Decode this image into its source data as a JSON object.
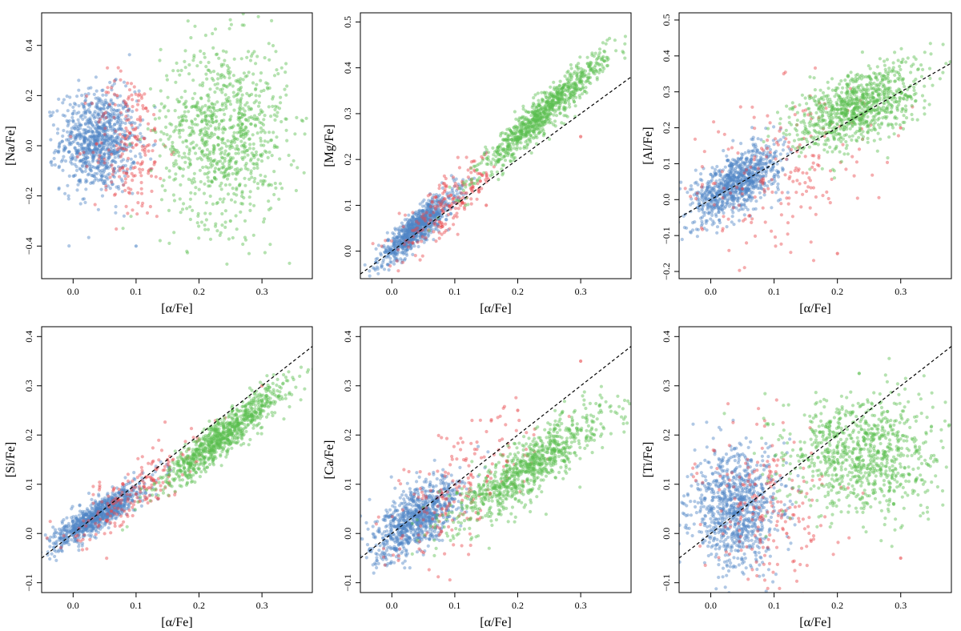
{
  "figure": {
    "layout": "2x3 grid of scatter panels",
    "colors": {
      "blue_population": "#4f86c6",
      "red_population": "#e8474b",
      "green_population": "#5bbf4f",
      "reference_line": "#000000"
    }
  },
  "chart_data": [
    {
      "type": "scatter",
      "title": "",
      "xlabel": "[α/Fe]",
      "ylabel": "[Na/Fe]",
      "xlim": [
        -0.05,
        0.38
      ],
      "ylim": [
        -0.53,
        0.53
      ],
      "xticks": [
        "0.0",
        "0.1",
        "0.2",
        "0.3"
      ],
      "yticks": [
        "−0.4",
        "−0.2",
        "0.0",
        "0.2",
        "0.4"
      ],
      "ytick_values": [
        -0.4,
        -0.2,
        0.0,
        0.2,
        0.4
      ],
      "reference_line": null,
      "series": [
        {
          "color": "blue",
          "n": 900,
          "x_center": 0.04,
          "x_spread": 0.03,
          "y_center": 0.02,
          "y_spread": 0.1,
          "points": [
            [
              0.02,
              0.03
            ],
            [
              0.05,
              0.01
            ],
            [
              0.08,
              -0.02
            ],
            [
              0.0,
              0.1
            ],
            [
              0.1,
              -0.4
            ]
          ]
        },
        {
          "color": "red",
          "n": 200,
          "x_center": 0.09,
          "x_spread": 0.03,
          "y_center": 0.0,
          "y_spread": 0.15,
          "points": [
            [
              0.09,
              0.05
            ],
            [
              0.12,
              -0.1
            ],
            [
              0.07,
              0.2
            ]
          ]
        },
        {
          "color": "green",
          "n": 900,
          "x_center": 0.24,
          "x_spread": 0.05,
          "y_center": 0.05,
          "y_spread": 0.18,
          "points": [
            [
              0.22,
              0.05
            ],
            [
              0.28,
              0.2
            ],
            [
              0.25,
              -0.3
            ],
            [
              0.18,
              0.1
            ]
          ]
        }
      ]
    },
    {
      "type": "scatter",
      "title": "",
      "xlabel": "[α/Fe]",
      "ylabel": "[Mg/Fe]",
      "xlim": [
        -0.05,
        0.38
      ],
      "ylim": [
        -0.06,
        0.52
      ],
      "xticks": [
        "0.0",
        "0.1",
        "0.2",
        "0.3"
      ],
      "yticks": [
        "0.0",
        "0.1",
        "0.2",
        "0.3",
        "0.4",
        "0.5"
      ],
      "ytick_values": [
        0.0,
        0.1,
        0.2,
        0.3,
        0.4,
        0.5
      ],
      "reference_line": {
        "slope": 1,
        "intercept": 0
      },
      "series": [
        {
          "color": "blue",
          "n": 900,
          "x_center": 0.04,
          "x_spread": 0.03,
          "relation": {
            "slope": 1.15,
            "intercept": 0.005
          },
          "y_scatter": 0.018,
          "points": [
            [
              0.02,
              0.03
            ],
            [
              0.05,
              0.06
            ],
            [
              0.1,
              0.12
            ]
          ]
        },
        {
          "color": "red",
          "n": 200,
          "x_center": 0.09,
          "x_spread": 0.04,
          "relation": {
            "slope": 1.1,
            "intercept": 0.0
          },
          "y_scatter": 0.03,
          "points": [
            [
              0.08,
              0.09
            ],
            [
              0.15,
              0.1
            ],
            [
              0.3,
              0.25
            ]
          ]
        },
        {
          "color": "green",
          "n": 900,
          "x_center": 0.24,
          "x_spread": 0.05,
          "relation": {
            "slope": 1.25,
            "intercept": 0.0
          },
          "y_scatter": 0.02,
          "points": [
            [
              0.2,
              0.25
            ],
            [
              0.25,
              0.31
            ],
            [
              0.3,
              0.37
            ]
          ]
        }
      ]
    },
    {
      "type": "scatter",
      "title": "",
      "xlabel": "[α/Fe]",
      "ylabel": "[Al/Fe]",
      "xlim": [
        -0.05,
        0.38
      ],
      "ylim": [
        -0.22,
        0.52
      ],
      "xticks": [
        "0.0",
        "0.1",
        "0.2",
        "0.3"
      ],
      "yticks": [
        "−0.2",
        "−0.1",
        "0.0",
        "0.1",
        "0.2",
        "0.3",
        "0.4",
        "0.5"
      ],
      "ytick_values": [
        -0.2,
        -0.1,
        0.0,
        0.1,
        0.2,
        0.3,
        0.4,
        0.5
      ],
      "reference_line": {
        "slope": 1,
        "intercept": 0
      },
      "series": [
        {
          "color": "blue",
          "n": 900,
          "x_center": 0.04,
          "x_spread": 0.035,
          "relation": {
            "slope": 0.9,
            "intercept": 0.01
          },
          "y_scatter": 0.04,
          "points": [
            [
              0.02,
              0.03
            ],
            [
              0.06,
              0.07
            ],
            [
              0.1,
              0.12
            ]
          ]
        },
        {
          "color": "red",
          "n": 200,
          "x_center": 0.12,
          "x_spread": 0.08,
          "relation": {
            "slope": 0.7,
            "intercept": 0.0
          },
          "y_scatter": 0.12,
          "points": [
            [
              0.05,
              0.03
            ],
            [
              0.2,
              -0.15
            ],
            [
              0.3,
              0.2
            ]
          ]
        },
        {
          "color": "green",
          "n": 900,
          "x_center": 0.23,
          "x_spread": 0.05,
          "relation": {
            "slope": 0.6,
            "intercept": 0.12
          },
          "y_scatter": 0.05,
          "points": [
            [
              0.2,
              0.24
            ],
            [
              0.25,
              0.27
            ],
            [
              0.3,
              0.3
            ]
          ]
        }
      ]
    },
    {
      "type": "scatter",
      "title": "",
      "xlabel": "[α/Fe]",
      "ylabel": "[Si/Fe]",
      "xlim": [
        -0.05,
        0.38
      ],
      "ylim": [
        -0.12,
        0.42
      ],
      "xticks": [
        "0.0",
        "0.1",
        "0.2",
        "0.3"
      ],
      "yticks": [
        "−0.1",
        "0.0",
        "0.1",
        "0.2",
        "0.3",
        "0.4"
      ],
      "ytick_values": [
        -0.1,
        0.0,
        0.1,
        0.2,
        0.3,
        0.4
      ],
      "reference_line": {
        "slope": 1,
        "intercept": 0
      },
      "series": [
        {
          "color": "blue",
          "n": 900,
          "x_center": 0.04,
          "x_spread": 0.035,
          "relation": {
            "slope": 0.8,
            "intercept": 0.005
          },
          "y_scatter": 0.015,
          "points": [
            [
              0.02,
              0.02
            ],
            [
              0.06,
              0.05
            ],
            [
              0.1,
              0.08
            ]
          ]
        },
        {
          "color": "red",
          "n": 200,
          "x_center": 0.1,
          "x_spread": 0.05,
          "relation": {
            "slope": 0.9,
            "intercept": 0.0
          },
          "y_scatter": 0.03,
          "points": [
            [
              0.1,
              0.08
            ],
            [
              0.15,
              0.15
            ],
            [
              0.3,
              0.3
            ]
          ]
        },
        {
          "color": "green",
          "n": 900,
          "x_center": 0.24,
          "x_spread": 0.05,
          "relation": {
            "slope": 1.0,
            "intercept": -0.04
          },
          "y_scatter": 0.02,
          "points": [
            [
              0.2,
              0.16
            ],
            [
              0.25,
              0.21
            ],
            [
              0.3,
              0.26
            ]
          ]
        }
      ]
    },
    {
      "type": "scatter",
      "title": "",
      "xlabel": "[α/Fe]",
      "ylabel": "[Ca/Fe]",
      "xlim": [
        -0.05,
        0.38
      ],
      "ylim": [
        -0.12,
        0.42
      ],
      "xticks": [
        "0.0",
        "0.1",
        "0.2",
        "0.3"
      ],
      "yticks": [
        "−0.1",
        "0.0",
        "0.1",
        "0.2",
        "0.3",
        "0.4"
      ],
      "ytick_values": [
        -0.1,
        0.0,
        0.1,
        0.2,
        0.3,
        0.4
      ],
      "reference_line": {
        "slope": 1,
        "intercept": 0
      },
      "series": [
        {
          "color": "blue",
          "n": 900,
          "x_center": 0.04,
          "x_spread": 0.035,
          "relation": {
            "slope": 0.75,
            "intercept": 0.0
          },
          "y_scatter": 0.03,
          "points": [
            [
              0.02,
              0.01
            ],
            [
              0.06,
              0.04
            ],
            [
              0.1,
              0.07
            ]
          ]
        },
        {
          "color": "red",
          "n": 200,
          "x_center": 0.11,
          "x_spread": 0.06,
          "relation": {
            "slope": 0.8,
            "intercept": 0.0
          },
          "y_scatter": 0.06,
          "points": [
            [
              0.08,
              0.05
            ],
            [
              0.2,
              0.25
            ],
            [
              0.3,
              0.35
            ]
          ]
        },
        {
          "color": "green",
          "n": 900,
          "x_center": 0.22,
          "x_spread": 0.06,
          "relation": {
            "slope": 0.85,
            "intercept": -0.05
          },
          "y_scatter": 0.03,
          "points": [
            [
              0.15,
              0.08
            ],
            [
              0.22,
              0.14
            ],
            [
              0.3,
              0.21
            ]
          ]
        }
      ]
    },
    {
      "type": "scatter",
      "title": "",
      "xlabel": "[α/Fe]",
      "ylabel": "[Ti/Fe]",
      "xlim": [
        -0.05,
        0.38
      ],
      "ylim": [
        -0.12,
        0.42
      ],
      "xticks": [
        "0.0",
        "0.1",
        "0.2",
        "0.3"
      ],
      "yticks": [
        "−0.1",
        "0.0",
        "0.1",
        "0.2",
        "0.3",
        "0.4"
      ],
      "ytick_values": [
        -0.1,
        0.0,
        0.1,
        0.2,
        0.3,
        0.4
      ],
      "reference_line": {
        "slope": 1,
        "intercept": 0
      },
      "series": [
        {
          "color": "blue",
          "n": 900,
          "x_center": 0.04,
          "x_spread": 0.035,
          "y_center": 0.05,
          "y_spread": 0.06,
          "points": [
            [
              0.02,
              0.05
            ],
            [
              0.06,
              0.03
            ],
            [
              0.08,
              0.1
            ]
          ]
        },
        {
          "color": "red",
          "n": 200,
          "x_center": 0.09,
          "x_spread": 0.05,
          "y_center": 0.05,
          "y_spread": 0.08,
          "points": [
            [
              0.07,
              0.1
            ],
            [
              0.12,
              0.0
            ],
            [
              0.3,
              -0.05
            ]
          ]
        },
        {
          "color": "green",
          "n": 900,
          "x_center": 0.24,
          "x_spread": 0.06,
          "y_center": 0.16,
          "y_spread": 0.06,
          "points": [
            [
              0.2,
              0.15
            ],
            [
              0.27,
              0.2
            ],
            [
              0.3,
              0.1
            ]
          ]
        }
      ]
    }
  ]
}
